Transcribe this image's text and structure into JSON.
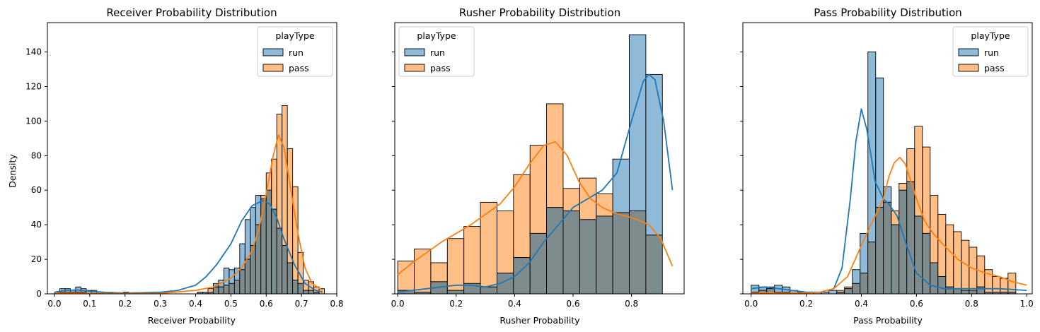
{
  "shared_ylabel": "Density",
  "legend_title": "playType",
  "colors": {
    "run_fill": "#1f77b4",
    "pass_fill": "#ff7f0e",
    "overlap_fill": "#7f8c8d",
    "run_kde": "#1f77b4",
    "pass_kde": "#ff7f0e"
  },
  "chart_data": [
    {
      "type": "bar",
      "title": "Receiver Probability Distribution",
      "xlabel": "Receiver Probability",
      "ylabel": "Density",
      "xlim": [
        -0.02,
        0.8
      ],
      "ylim": [
        0,
        157
      ],
      "xticks": [
        "0.0",
        "0.1",
        "0.2",
        "0.3",
        "0.4",
        "0.5",
        "0.6",
        "0.7",
        "0.8"
      ],
      "xtick_values": [
        0,
        0.1,
        0.2,
        0.3,
        0.4,
        0.5,
        0.6,
        0.7,
        0.8
      ],
      "yticks": [
        "0",
        "20",
        "40",
        "60",
        "80",
        "100",
        "120",
        "140"
      ],
      "ytick_values": [
        0,
        20,
        40,
        60,
        80,
        100,
        120,
        140
      ],
      "legend": {
        "position": "top-right",
        "entries": [
          "run",
          "pass"
        ]
      },
      "bins": {
        "start": 0.0,
        "width": 0.015
      },
      "series": [
        {
          "name": "run",
          "values": [
            1,
            3,
            3,
            2,
            4,
            3,
            2,
            2,
            1,
            1,
            1,
            0,
            0,
            1,
            0,
            0,
            0,
            0,
            0,
            0,
            1,
            0,
            0,
            0,
            0,
            0,
            0,
            1,
            1,
            1,
            6,
            8,
            15,
            14,
            15,
            29,
            43,
            50,
            57,
            55,
            60,
            49,
            38,
            28,
            18,
            8,
            6,
            2,
            2,
            1,
            0
          ]
        },
        {
          "name": "pass",
          "values": [
            1,
            1,
            1,
            1,
            1,
            1,
            0,
            0,
            0,
            0,
            0,
            0,
            0,
            0,
            0,
            0,
            0,
            0,
            0,
            0,
            0,
            0,
            0,
            0,
            0,
            0,
            0,
            1,
            1,
            3,
            4,
            4,
            5,
            6,
            8,
            14,
            20,
            28,
            40,
            57,
            70,
            78,
            104,
            109,
            84,
            62,
            24,
            8,
            7,
            4,
            3
          ]
        }
      ],
      "kde": [
        {
          "name": "run",
          "x": [
            0,
            0.03,
            0.06,
            0.1,
            0.15,
            0.2,
            0.3,
            0.35,
            0.4,
            0.43,
            0.46,
            0.5,
            0.53,
            0.56,
            0.59,
            0.61,
            0.63,
            0.65,
            0.68,
            0.71,
            0.74,
            0.76
          ],
          "y": [
            1,
            2,
            2.3,
            1.5,
            0.8,
            0.5,
            1,
            2,
            5,
            10,
            17,
            29,
            42,
            51,
            54,
            52,
            44,
            32,
            17,
            6,
            2,
            1
          ]
        },
        {
          "name": "pass",
          "x": [
            0,
            0.05,
            0.1,
            0.2,
            0.3,
            0.4,
            0.45,
            0.5,
            0.53,
            0.56,
            0.58,
            0.6,
            0.62,
            0.635,
            0.65,
            0.67,
            0.69,
            0.71,
            0.73,
            0.76
          ],
          "y": [
            0.5,
            0.5,
            0.3,
            0.2,
            0.3,
            2,
            4,
            9,
            15,
            25,
            38,
            58,
            80,
            92,
            85,
            60,
            35,
            15,
            6,
            2
          ]
        }
      ]
    },
    {
      "type": "bar",
      "title": "Rusher Probability Distribution",
      "xlabel": "Rusher Probability",
      "ylabel": "",
      "xlim": [
        -0.01,
        0.98
      ],
      "ylim": [
        0,
        157
      ],
      "xticks": [
        "0.0",
        "0.2",
        "0.4",
        "0.6",
        "0.8"
      ],
      "xtick_values": [
        0,
        0.2,
        0.4,
        0.6,
        0.8
      ],
      "yticks": [],
      "ytick_values": [
        0,
        20,
        40,
        60,
        80,
        100,
        120,
        140
      ],
      "legend": {
        "position": "top-left",
        "entries": [
          "run",
          "pass"
        ]
      },
      "bins": {
        "start": 0.0,
        "width": 0.0566
      },
      "series": [
        {
          "name": "run",
          "values": [
            2,
            1,
            7,
            2,
            6,
            4,
            12,
            21,
            35,
            50,
            48,
            43,
            45,
            78,
            150,
            127
          ]
        },
        {
          "name": "pass",
          "values": [
            19,
            26,
            18,
            32,
            39,
            53,
            48,
            69,
            86,
            110,
            61,
            67,
            58,
            47,
            48,
            34
          ]
        }
      ],
      "kde": [
        {
          "name": "run",
          "x": [
            0,
            0.05,
            0.1,
            0.15,
            0.2,
            0.25,
            0.3,
            0.35,
            0.4,
            0.45,
            0.5,
            0.55,
            0.6,
            0.65,
            0.7,
            0.75,
            0.8,
            0.84,
            0.86,
            0.88,
            0.91,
            0.94
          ],
          "y": [
            1,
            2,
            3,
            4,
            5,
            5,
            4,
            6,
            10,
            18,
            30,
            40,
            50,
            55,
            60,
            70,
            100,
            123,
            127,
            124,
            100,
            60
          ]
        },
        {
          "name": "pass",
          "x": [
            0,
            0.05,
            0.1,
            0.15,
            0.2,
            0.25,
            0.3,
            0.35,
            0.4,
            0.45,
            0.5,
            0.54,
            0.58,
            0.62,
            0.66,
            0.7,
            0.74,
            0.78,
            0.82,
            0.86,
            0.9,
            0.94
          ],
          "y": [
            11,
            18,
            24,
            30,
            35,
            40,
            46,
            52,
            62,
            75,
            86,
            88,
            80,
            65,
            55,
            50,
            47,
            45,
            43,
            40,
            32,
            16
          ]
        }
      ]
    },
    {
      "type": "bar",
      "title": "Pass Probability Distribution",
      "xlabel": "Pass Probability",
      "ylabel": "",
      "xlim": [
        -0.03,
        1.02
      ],
      "ylim": [
        0,
        157
      ],
      "xticks": [
        "0.0",
        "0.2",
        "0.4",
        "0.6",
        "0.8",
        "1.0"
      ],
      "xtick_values": [
        0,
        0.2,
        0.4,
        0.6,
        0.8,
        1.0
      ],
      "yticks": [],
      "ytick_values": [
        0,
        20,
        40,
        60,
        80,
        100,
        120,
        140
      ],
      "legend": {
        "position": "top-right",
        "entries": [
          "run",
          "pass"
        ]
      },
      "bins": {
        "start": 0.0,
        "width": 0.02825
      },
      "series": [
        {
          "name": "run",
          "values": [
            5,
            4,
            4,
            5,
            4,
            2,
            1,
            0,
            1,
            1,
            2,
            1,
            3,
            14,
            35,
            140,
            125,
            62,
            40,
            60,
            65,
            45,
            35,
            18,
            10,
            4,
            3,
            2,
            2,
            4,
            1,
            1,
            1,
            1
          ]
        },
        {
          "name": "pass",
          "values": [
            1,
            2,
            3,
            1,
            1,
            0,
            0,
            0,
            0,
            0,
            0,
            2,
            4,
            6,
            12,
            30,
            50,
            53,
            48,
            64,
            84,
            97,
            85,
            57,
            46,
            40,
            36,
            31,
            27,
            22,
            14,
            10,
            9,
            12
          ]
        }
      ],
      "kde": [
        {
          "name": "run",
          "x": [
            0,
            0.05,
            0.1,
            0.15,
            0.2,
            0.25,
            0.3,
            0.33,
            0.36,
            0.38,
            0.4,
            0.42,
            0.45,
            0.48,
            0.5,
            0.53,
            0.56,
            0.6,
            0.65,
            0.7,
            0.8,
            0.9,
            1.0
          ],
          "y": [
            3,
            4,
            3,
            2,
            1,
            1,
            3,
            15,
            55,
            88,
            107,
            95,
            65,
            55,
            52,
            45,
            30,
            12,
            5,
            3,
            3,
            3,
            2
          ]
        },
        {
          "name": "pass",
          "x": [
            0,
            0.1,
            0.2,
            0.25,
            0.3,
            0.35,
            0.4,
            0.45,
            0.48,
            0.5,
            0.52,
            0.54,
            0.56,
            0.58,
            0.6,
            0.63,
            0.66,
            0.7,
            0.75,
            0.8,
            0.85,
            0.9,
            0.95,
            1.0
          ],
          "y": [
            0.5,
            0.5,
            0.5,
            1,
            3,
            10,
            28,
            45,
            55,
            68,
            76,
            79,
            75,
            65,
            55,
            42,
            35,
            28,
            20,
            15,
            12,
            10,
            7,
            5
          ]
        }
      ]
    }
  ]
}
